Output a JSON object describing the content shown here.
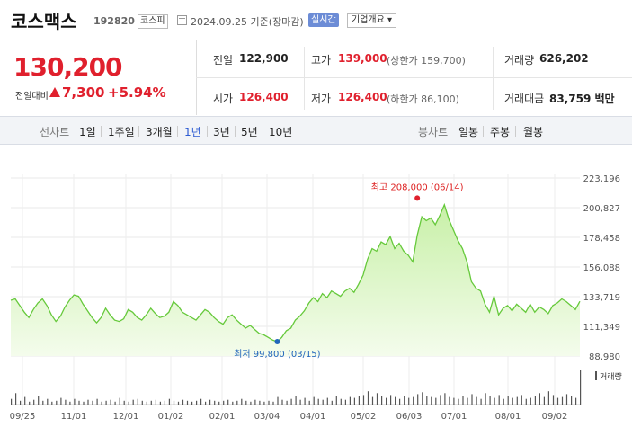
{
  "header": {
    "name": "코스맥스",
    "code": "192820",
    "market": "코스피",
    "date_text": "2024.09.25  기준(장마감)",
    "live_label": "실시간",
    "info_label": "기업개요 ▾"
  },
  "quote": {
    "price": "130,200",
    "change_label": "전일대비",
    "change": "7,300",
    "change_pct": "+5.94%",
    "prev_label": "전일",
    "prev": "122,900",
    "high_label": "고가",
    "high": "139,000",
    "high_limit": "(상한가 159,700)",
    "vol_label": "거래량",
    "volume": "626,202",
    "open_label": "시가",
    "open": "126,400",
    "low_label": "저가",
    "low": "126,400",
    "low_limit": "(하한가 86,100)",
    "amt_label": "거래대금",
    "amount": "83,759 백만"
  },
  "tabs": {
    "line_chart": "선차트",
    "periods": [
      "1일",
      "1주일",
      "3개월",
      "1년",
      "3년",
      "5년",
      "10년"
    ],
    "selected_period": "1년",
    "candle_chart": "봉차트",
    "candles": [
      "일봉",
      "주봉",
      "월봉"
    ]
  },
  "colors": {
    "up": "#e0202d",
    "line": "#66c93b",
    "fill_top": "#c8f0a8",
    "fill_bottom": "#f4fcec",
    "volume_bar": "#555555",
    "accent": "#2d5bd2"
  },
  "chart_data": {
    "type": "area",
    "y_ticks": [
      "223,196",
      "200,827",
      "178,458",
      "156,088",
      "133,719",
      "111,349",
      "88,980"
    ],
    "ylim": [
      88980,
      223196
    ],
    "x_ticks": [
      "09/25",
      "11/01",
      "12/01",
      "01/02",
      "02/01",
      "03/04",
      "04/01",
      "05/02",
      "06/03",
      "07/01",
      "08/01",
      "09/02"
    ],
    "series": [
      {
        "values": [
          131000,
          132000,
          127000,
          122000,
          118000,
          124000,
          129000,
          132000,
          127000,
          120000,
          115000,
          119000,
          126000,
          131000,
          135000,
          134000,
          128000,
          123000,
          118000,
          114000,
          118000,
          125000,
          120000,
          116000,
          115000,
          117000,
          124000,
          122000,
          118000,
          116000,
          120000,
          125000,
          121000,
          118000,
          119000,
          122000,
          130000,
          127000,
          122000,
          120000,
          118000,
          116000,
          120000,
          124000,
          122000,
          118000,
          115000,
          113000,
          118000,
          120000,
          116000,
          113000,
          110000,
          112000,
          109000,
          106000,
          105000,
          103000,
          101000,
          99800,
          103000,
          108000,
          110000,
          116000,
          119000,
          123000,
          129000,
          133000,
          130000,
          136000,
          133000,
          138000,
          136000,
          134000,
          138000,
          140000,
          137000,
          143000,
          150000,
          162000,
          170000,
          168000,
          175000,
          173000,
          179000,
          170000,
          174000,
          168000,
          165000,
          160000,
          180000,
          194000,
          191000,
          193000,
          188000,
          195000,
          203000,
          192000,
          184000,
          176000,
          170000,
          160000,
          145000,
          140000,
          138000,
          128000,
          122000,
          134000,
          120000,
          125000,
          127000,
          123000,
          128000,
          125000,
          122000,
          128000,
          122000,
          126000,
          124000,
          121000,
          127000,
          129000,
          132000,
          130000,
          127000,
          124000,
          130200
        ]
      }
    ],
    "high": {
      "text": "최고 208,000 (06/14)",
      "value": 208000,
      "index": 90
    },
    "low": {
      "text": "최저 99,800 (03/15)",
      "value": 99800,
      "index": 59
    },
    "volume_label": "거래량",
    "volume": [
      6,
      12,
      4,
      8,
      3,
      5,
      9,
      4,
      6,
      3,
      4,
      7,
      5,
      3,
      6,
      4,
      3,
      5,
      4,
      6,
      3,
      4,
      5,
      3,
      7,
      4,
      3,
      5,
      6,
      4,
      3,
      4,
      5,
      3,
      4,
      6,
      4,
      3,
      5,
      4,
      3,
      4,
      6,
      3,
      5,
      4,
      3,
      4,
      5,
      3,
      4,
      6,
      4,
      3,
      5,
      4,
      3,
      4,
      3,
      8,
      5,
      4,
      6,
      9,
      5,
      7,
      4,
      8,
      6,
      5,
      7,
      4,
      9,
      6,
      5,
      8,
      7,
      9,
      10,
      14,
      8,
      12,
      9,
      7,
      10,
      8,
      6,
      9,
      7,
      8,
      11,
      13,
      9,
      8,
      7,
      10,
      12,
      8,
      7,
      6,
      9,
      7,
      11,
      8,
      6,
      12,
      9,
      7,
      10,
      6,
      9,
      7,
      8,
      10,
      6,
      7,
      9,
      12,
      8,
      14,
      10,
      7,
      8,
      11,
      9,
      7,
      36
    ]
  }
}
